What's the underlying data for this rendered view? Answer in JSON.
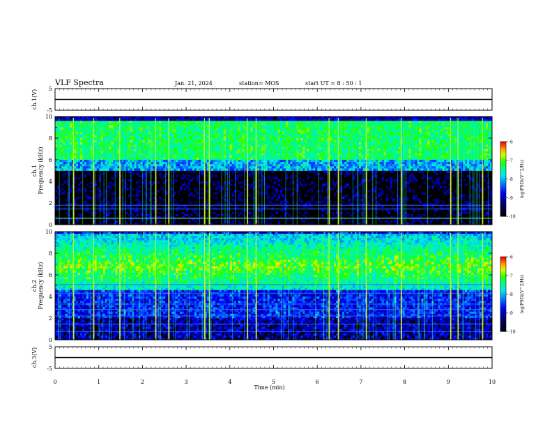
{
  "header": {
    "title": "VLF Spectra",
    "date": "Jan. 21, 2024",
    "station": "station= MOS",
    "start_ut": "start  UT =   8 : 50 : 1"
  },
  "chart_data": [
    {
      "type": "line",
      "panel": "ch1-waveform",
      "ylabel": "ch.1(V)",
      "ylim": [
        -5,
        5
      ],
      "yticks": [
        "5",
        "-5"
      ],
      "series": [
        {
          "values": [
            0
          ]
        }
      ]
    },
    {
      "type": "heatmap",
      "panel": "ch1-spectrogram",
      "ylabel_top": "ch.1",
      "ylabel": "Frequency (kHz)",
      "ylim": [
        0,
        10
      ],
      "yticks": [
        "0",
        "2",
        "4",
        "6",
        "8",
        "10"
      ],
      "colorbar": {
        "label": "log(PSD)(V^2/Hz)",
        "range": [
          -10,
          -6
        ],
        "ticks": [
          "-6",
          "-7",
          "-8",
          "-9",
          "-10"
        ]
      },
      "colormap": [
        "#000000",
        "#0000a0",
        "#0000ff",
        "#0080ff",
        "#00ffff",
        "#00ff80",
        "#00ff00",
        "#c0ff00",
        "#ffff00",
        "#ff8000",
        "#ff0000",
        "#ffffff"
      ],
      "lines_khz": [
        0.6,
        1.45,
        1.8
      ],
      "bursts_min": [
        0.42,
        0.88,
        1.48,
        2.3,
        2.6,
        3.42,
        3.53,
        4.4,
        4.6,
        6.27,
        6.48,
        7.12,
        7.92,
        9.05,
        9.22,
        9.78
      ]
    },
    {
      "type": "heatmap",
      "panel": "ch2-spectrogram",
      "ylabel_top": "ch.2",
      "ylabel": "Frequency (kHz)",
      "ylim": [
        0,
        10
      ],
      "yticks": [
        "0",
        "2",
        "4",
        "6",
        "8",
        "10"
      ],
      "colorbar": {
        "label": "log(PSD)(V^2/Hz)",
        "range": [
          -10,
          -6
        ],
        "ticks": [
          "-6",
          "-7",
          "-8",
          "-9",
          "-10"
        ]
      },
      "lines_khz": [
        0.75,
        1.45,
        2.2,
        2.8,
        3.3,
        4.3,
        5.1
      ],
      "bursts_min": [
        0.42,
        0.88,
        1.48,
        2.3,
        2.6,
        3.42,
        3.53,
        4.4,
        4.6,
        6.27,
        6.48,
        7.12,
        7.92,
        9.05,
        9.22,
        9.78
      ]
    },
    {
      "type": "line",
      "panel": "ch3-waveform",
      "ylabel": "ch.3(V)",
      "ylim": [
        -5,
        5
      ],
      "yticks": [
        "5",
        "-5"
      ],
      "series": [
        {
          "values": [
            0
          ]
        }
      ]
    }
  ],
  "xaxis": {
    "label": "Time (min)",
    "range": [
      0,
      10
    ],
    "ticks": [
      "0",
      "1",
      "2",
      "3",
      "4",
      "5",
      "6",
      "7",
      "8",
      "9",
      "10"
    ]
  }
}
